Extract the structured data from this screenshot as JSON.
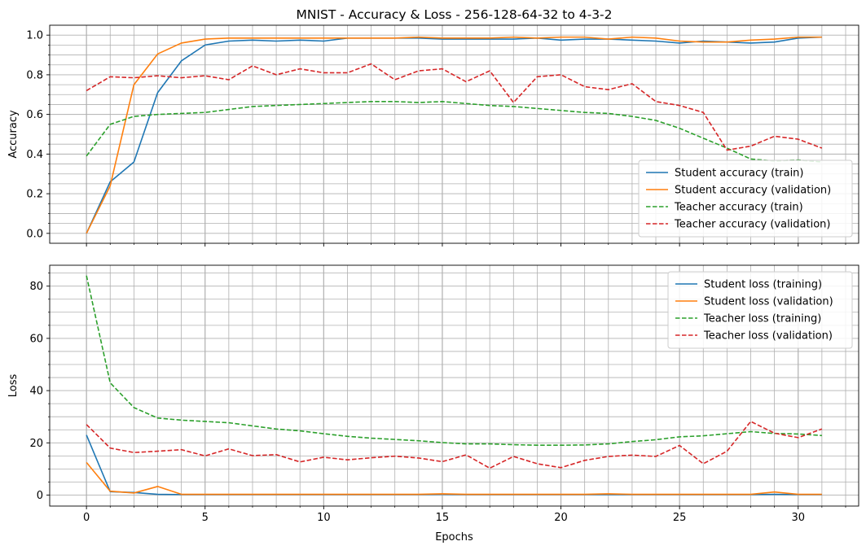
{
  "title": "MNIST - Accuracy & Loss - 256-128-64-32 to 4-3-2",
  "chart_data": [
    {
      "type": "line",
      "ylabel": "Accuracy",
      "xlabel": "",
      "xlim": [
        -1.55,
        32.55
      ],
      "ylim": [
        -0.05,
        1.05
      ],
      "xticks": [
        0,
        5,
        10,
        15,
        20,
        25,
        30
      ],
      "xticks_minor": [
        1,
        2,
        3,
        4,
        6,
        7,
        8,
        9,
        11,
        12,
        13,
        14,
        16,
        17,
        18,
        19,
        21,
        22,
        23,
        24,
        26,
        27,
        28,
        29,
        31,
        32
      ],
      "yticks": [
        0.0,
        0.2,
        0.4,
        0.6,
        0.8,
        1.0
      ],
      "yticks_minor": [
        0.05,
        0.1,
        0.15,
        0.25,
        0.3,
        0.35,
        0.45,
        0.5,
        0.55,
        0.65,
        0.7,
        0.75,
        0.85,
        0.9,
        0.95
      ],
      "ytick_format": 1,
      "grid": true,
      "legend_position": "lower-right",
      "x": [
        0,
        1,
        2,
        3,
        4,
        5,
        6,
        7,
        8,
        9,
        10,
        11,
        12,
        13,
        14,
        15,
        16,
        17,
        18,
        19,
        20,
        21,
        22,
        23,
        24,
        25,
        26,
        27,
        28,
        29,
        30,
        31
      ],
      "series": [
        {
          "name": "Student accuracy (train)",
          "color": "#1f77b4",
          "dash": "solid",
          "values": [
            0.0,
            0.26,
            0.36,
            0.71,
            0.87,
            0.95,
            0.97,
            0.975,
            0.97,
            0.975,
            0.97,
            0.985,
            0.985,
            0.985,
            0.985,
            0.98,
            0.98,
            0.98,
            0.98,
            0.985,
            0.975,
            0.98,
            0.98,
            0.975,
            0.97,
            0.96,
            0.97,
            0.965,
            0.96,
            0.965,
            0.985,
            0.99
          ]
        },
        {
          "name": "Student accuracy (validation)",
          "color": "#ff7f0e",
          "dash": "solid",
          "values": [
            0.0,
            0.24,
            0.75,
            0.905,
            0.96,
            0.98,
            0.985,
            0.985,
            0.985,
            0.985,
            0.985,
            0.985,
            0.985,
            0.985,
            0.99,
            0.985,
            0.985,
            0.985,
            0.99,
            0.985,
            0.99,
            0.99,
            0.98,
            0.99,
            0.985,
            0.97,
            0.965,
            0.965,
            0.975,
            0.98,
            0.99,
            0.99
          ]
        },
        {
          "name": "Teacher accuracy (train)",
          "color": "#2ca02c",
          "dash": "dashed",
          "values": [
            0.39,
            0.55,
            0.59,
            0.6,
            0.605,
            0.61,
            0.625,
            0.64,
            0.645,
            0.65,
            0.655,
            0.66,
            0.665,
            0.665,
            0.66,
            0.665,
            0.655,
            0.645,
            0.64,
            0.63,
            0.62,
            0.61,
            0.605,
            0.59,
            0.57,
            0.53,
            0.48,
            0.43,
            0.375,
            0.365,
            0.37,
            0.36
          ]
        },
        {
          "name": "Teacher accuracy (validation)",
          "color": "#d62728",
          "dash": "dashed",
          "values": [
            0.72,
            0.79,
            0.785,
            0.795,
            0.785,
            0.795,
            0.775,
            0.845,
            0.8,
            0.83,
            0.81,
            0.81,
            0.855,
            0.775,
            0.82,
            0.83,
            0.765,
            0.82,
            0.66,
            0.79,
            0.8,
            0.74,
            0.725,
            0.755,
            0.665,
            0.645,
            0.61,
            0.42,
            0.44,
            0.49,
            0.475,
            0.43
          ]
        }
      ]
    },
    {
      "type": "line",
      "ylabel": "Loss",
      "xlabel": "Epochs",
      "xlim": [
        -1.55,
        32.55
      ],
      "ylim": [
        -4.2,
        88
      ],
      "xticks": [
        0,
        5,
        10,
        15,
        20,
        25,
        30
      ],
      "xticks_minor": [
        1,
        2,
        3,
        4,
        6,
        7,
        8,
        9,
        11,
        12,
        13,
        14,
        16,
        17,
        18,
        19,
        21,
        22,
        23,
        24,
        26,
        27,
        28,
        29,
        31,
        32
      ],
      "yticks": [
        0,
        20,
        40,
        60,
        80
      ],
      "yticks_minor": [
        5,
        10,
        15,
        25,
        30,
        35,
        45,
        50,
        55,
        65,
        70,
        75,
        85
      ],
      "ytick_format": 0,
      "grid": true,
      "legend_position": "upper-right",
      "x": [
        0,
        1,
        2,
        3,
        4,
        5,
        6,
        7,
        8,
        9,
        10,
        11,
        12,
        13,
        14,
        15,
        16,
        17,
        18,
        19,
        20,
        21,
        22,
        23,
        24,
        25,
        26,
        27,
        28,
        29,
        30,
        31
      ],
      "series": [
        {
          "name": "Student loss (training)",
          "color": "#1f77b4",
          "dash": "solid",
          "values": [
            23,
            1.3,
            1.0,
            0.3,
            0.2,
            0.2,
            0.2,
            0.2,
            0.2,
            0.2,
            0.2,
            0.2,
            0.2,
            0.2,
            0.2,
            0.3,
            0.2,
            0.2,
            0.2,
            0.2,
            0.2,
            0.2,
            0.2,
            0.2,
            0.2,
            0.2,
            0.2,
            0.2,
            0.2,
            0.3,
            0.2,
            0.2
          ]
        },
        {
          "name": "Student loss (validation)",
          "color": "#ff7f0e",
          "dash": "solid",
          "values": [
            12.5,
            1.5,
            0.8,
            3.3,
            0.3,
            0.3,
            0.3,
            0.3,
            0.3,
            0.3,
            0.3,
            0.3,
            0.3,
            0.3,
            0.3,
            0.5,
            0.3,
            0.3,
            0.3,
            0.3,
            0.3,
            0.3,
            0.5,
            0.3,
            0.3,
            0.3,
            0.3,
            0.3,
            0.3,
            1.2,
            0.3,
            0.3
          ]
        },
        {
          "name": "Teacher loss (training)",
          "color": "#2ca02c",
          "dash": "dashed",
          "values": [
            84,
            43,
            33.5,
            29.5,
            28.7,
            28.2,
            27.7,
            26.5,
            25.3,
            24.6,
            23.5,
            22.5,
            21.8,
            21.3,
            20.8,
            20.1,
            19.6,
            19.6,
            19.3,
            19.1,
            19.1,
            19.2,
            19.6,
            20.5,
            21.2,
            22.3,
            22.7,
            23.5,
            24.3,
            23.6,
            23.4,
            22.8
          ]
        },
        {
          "name": "Teacher loss (validation)",
          "color": "#d62728",
          "dash": "dashed",
          "values": [
            27,
            18,
            16.3,
            16.8,
            17.4,
            15.0,
            17.7,
            15.1,
            15.5,
            12.7,
            14.5,
            13.5,
            14.3,
            14.9,
            14.2,
            12.8,
            15.4,
            10.3,
            14.8,
            12.0,
            10.5,
            13.3,
            14.8,
            15.3,
            14.8,
            19.0,
            12.0,
            16.8,
            28.2,
            23.7,
            22.0,
            25.3
          ]
        }
      ]
    }
  ]
}
